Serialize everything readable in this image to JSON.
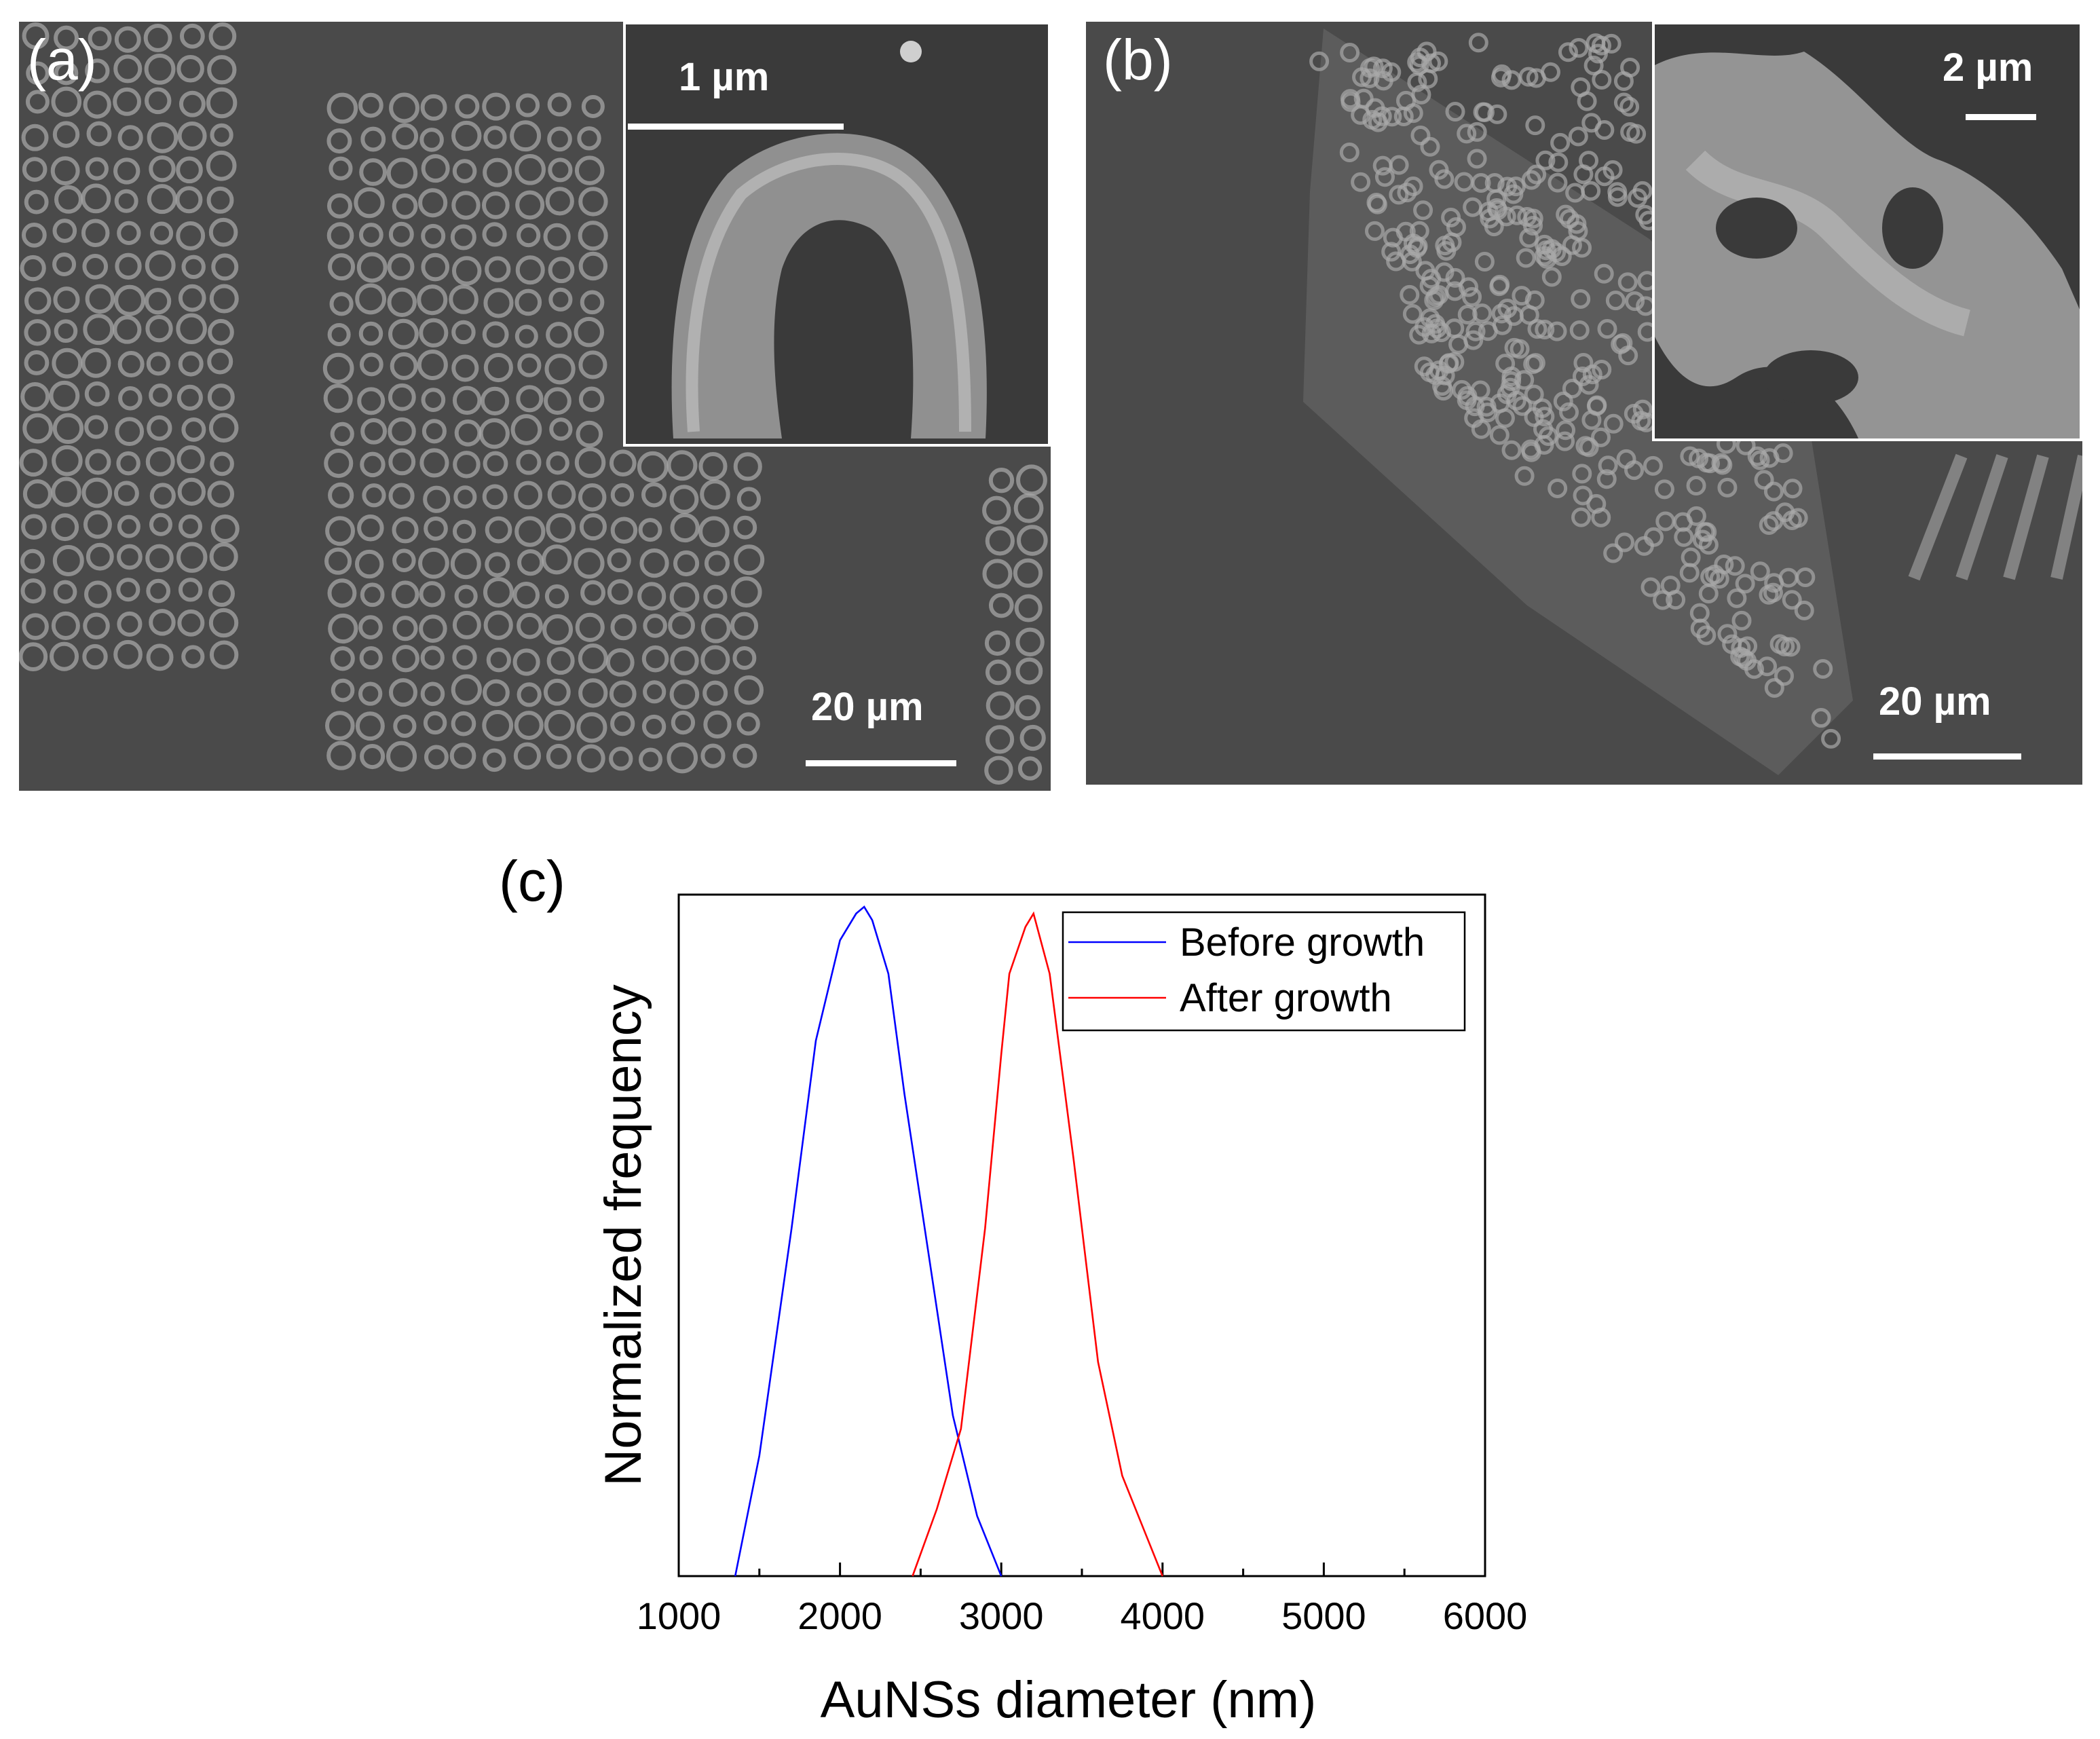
{
  "panels": {
    "a": {
      "label": "(a)",
      "scale_main": "20 µm",
      "scale_inset": "1 µm"
    },
    "b": {
      "label": "(b)",
      "scale_main": "20 µm",
      "scale_inset": "2 µm"
    },
    "c": {
      "label": "(c)"
    }
  },
  "chart_data": {
    "type": "line",
    "xlabel": "AuNSs diameter (nm)",
    "ylabel": "Normalized frequency",
    "xlim": [
      1000,
      6000
    ],
    "ylim": [
      0,
      1.0
    ],
    "x_ticks": [
      1000,
      2000,
      3000,
      4000,
      5000,
      6000
    ],
    "y_ticks_shown": false,
    "grid": false,
    "legend_position": "top-right",
    "series": [
      {
        "name": "Before growth",
        "color": "#0000ff",
        "x": [
          1350,
          1500,
          1700,
          1850,
          2000,
          2100,
          2150,
          2200,
          2300,
          2400,
          2550,
          2700,
          2850,
          3000
        ],
        "y": [
          0.0,
          0.18,
          0.52,
          0.8,
          0.95,
          0.99,
          1.0,
          0.98,
          0.9,
          0.72,
          0.48,
          0.24,
          0.09,
          0.0
        ]
      },
      {
        "name": "After growth",
        "color": "#ff0000",
        "x": [
          2450,
          2600,
          2750,
          2900,
          3000,
          3050,
          3150,
          3200,
          3300,
          3450,
          3600,
          3750,
          3900,
          4000
        ],
        "y": [
          0.0,
          0.1,
          0.22,
          0.52,
          0.78,
          0.9,
          0.97,
          0.99,
          0.9,
          0.62,
          0.32,
          0.15,
          0.06,
          0.0
        ]
      }
    ]
  }
}
